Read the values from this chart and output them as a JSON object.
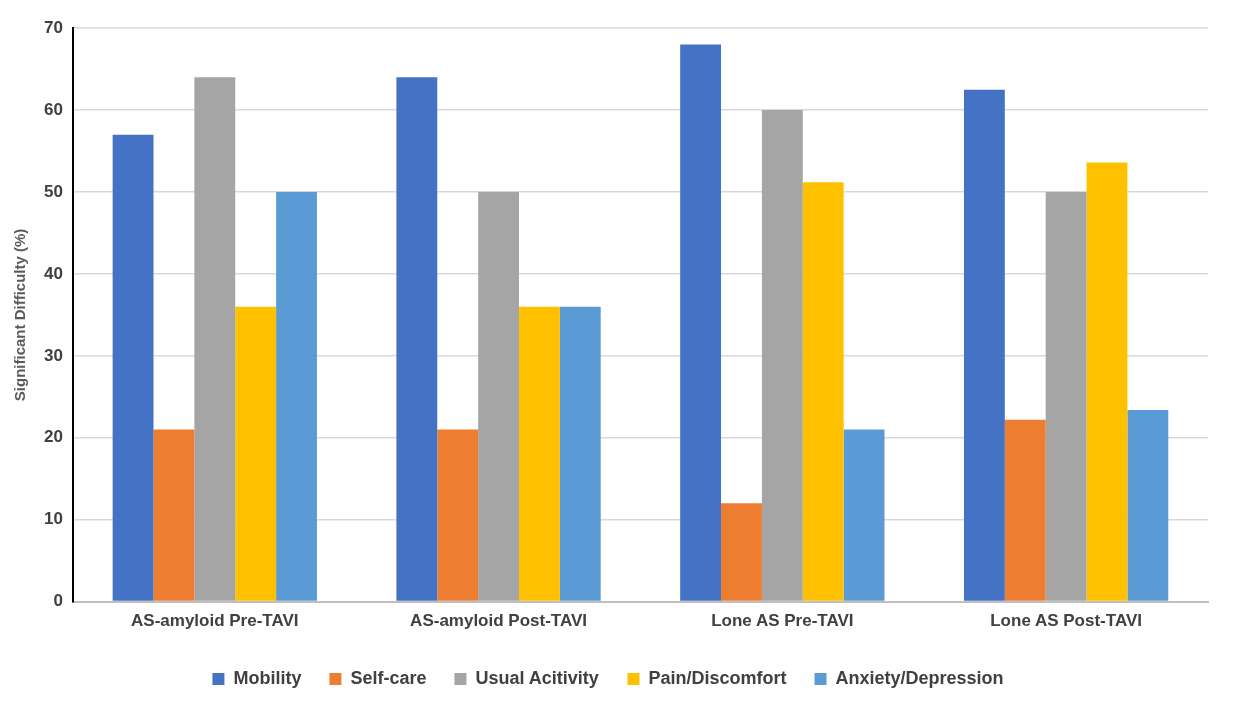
{
  "chart_data": {
    "type": "bar",
    "ylabel": "Significant Difficulty (%)",
    "categories": [
      "AS-amyloid Pre-TAVI",
      "AS-amyloid Post-TAVI",
      "Lone AS Pre-TAVI",
      "Lone AS Post-TAVI"
    ],
    "series": [
      {
        "name": "Mobility",
        "color": "#4472c4",
        "values": [
          57,
          64,
          68,
          62.5
        ]
      },
      {
        "name": "Self-care",
        "color": "#ed7d31",
        "values": [
          21,
          21,
          12,
          22.2
        ]
      },
      {
        "name": "Usual Acitivity",
        "color": "#a5a5a5",
        "values": [
          64,
          50,
          60,
          50
        ]
      },
      {
        "name": "Pain/Discomfort",
        "color": "#ffc000",
        "values": [
          36,
          36,
          51.2,
          53.6
        ]
      },
      {
        "name": "Anxiety/Depression",
        "color": "#5b9bd5",
        "values": [
          50,
          36,
          21,
          23.4
        ]
      }
    ],
    "ylim": [
      0,
      70
    ],
    "yticks": [
      0,
      10,
      20,
      30,
      40,
      50,
      60,
      70
    ],
    "grid": "y",
    "legend": "bottom"
  }
}
